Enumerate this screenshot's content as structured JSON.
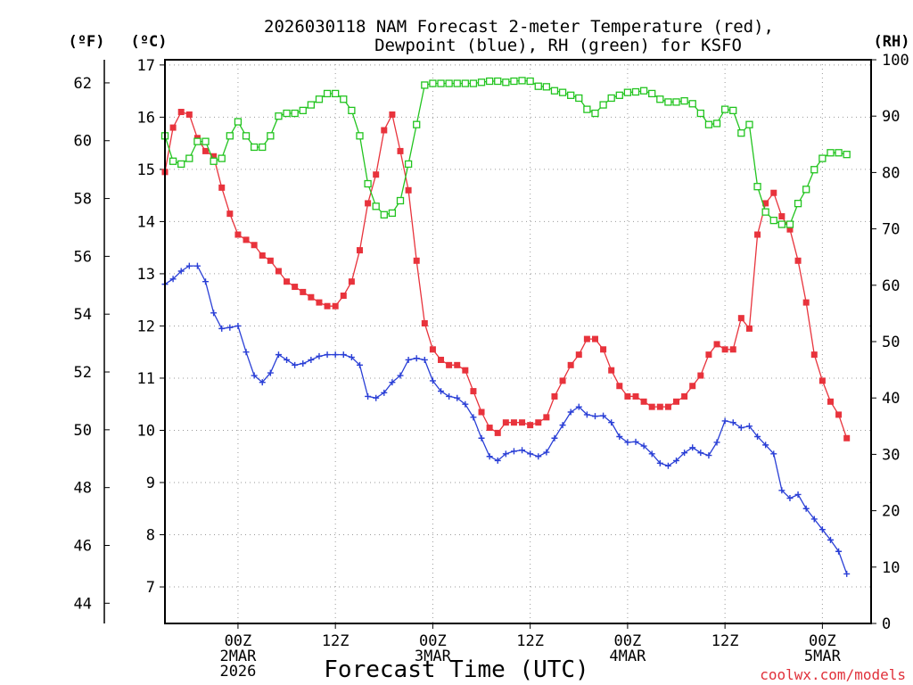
{
  "chart_data": {
    "type": "line",
    "title_line1": "2026030118 NAM Forecast 2-meter Temperature (red),",
    "title_line2": "Dewpoint (blue), RH (green) for KSFO",
    "unit_f": "(ºF)",
    "unit_c": "(ºC)",
    "unit_rh": "(RH)",
    "xlabel": "Forecast Time (UTC)",
    "credit": "coolwx.com/models",
    "x_start_hour": -3,
    "x_end_hour": 84,
    "x_ticks": [
      {
        "hour": 6,
        "lines": [
          "00Z",
          "2MAR",
          "2026"
        ]
      },
      {
        "hour": 18,
        "lines": [
          "12Z"
        ]
      },
      {
        "hour": 30,
        "lines": [
          "00Z",
          "3MAR"
        ]
      },
      {
        "hour": 42,
        "lines": [
          "12Z"
        ]
      },
      {
        "hour": 54,
        "lines": [
          "00Z",
          "4MAR"
        ]
      },
      {
        "hour": 66,
        "lines": [
          "12Z"
        ]
      },
      {
        "hour": 78,
        "lines": [
          "00Z",
          "5MAR"
        ]
      }
    ],
    "c_axis": {
      "range": [
        6.3,
        17.1
      ],
      "ticks": [
        "7",
        "8",
        "9",
        "10",
        "11",
        "12",
        "13",
        "14",
        "15",
        "16",
        "17"
      ]
    },
    "f_axis": {
      "range": [
        43.3,
        62.8
      ],
      "ticks": [
        "44",
        "46",
        "48",
        "50",
        "52",
        "54",
        "56",
        "58",
        "60",
        "62"
      ]
    },
    "rh_axis": {
      "range": [
        0,
        100
      ],
      "ticks": [
        "0",
        "10",
        "20",
        "30",
        "40",
        "50",
        "60",
        "70",
        "80",
        "90",
        "100"
      ]
    },
    "series": [
      {
        "name": "Temperature",
        "unit": "C",
        "color": "#e8333c",
        "marker": "square-filled",
        "start_hour": -3,
        "step_hours": 1,
        "values": [
          14.95,
          15.8,
          16.1,
          16.05,
          15.6,
          15.35,
          15.25,
          14.65,
          14.15,
          13.75,
          13.65,
          13.55,
          13.35,
          13.25,
          13.05,
          12.85,
          12.75,
          12.65,
          12.55,
          12.45,
          12.38,
          12.38,
          12.58,
          12.85,
          13.45,
          14.35,
          14.9,
          15.75,
          16.05,
          15.35,
          14.6,
          13.25,
          12.05,
          11.55,
          11.35,
          11.25,
          11.25,
          11.15,
          10.75,
          10.35,
          10.05,
          9.95,
          10.15,
          10.15,
          10.15,
          10.1,
          10.15,
          10.25,
          10.65,
          10.95,
          11.25,
          11.45,
          11.75,
          11.75,
          11.55,
          11.15,
          10.85,
          10.65,
          10.65,
          10.55,
          10.45,
          10.45,
          10.45,
          10.55,
          10.65,
          10.85,
          11.05,
          11.45,
          11.65,
          11.55,
          11.55,
          12.15,
          11.95,
          13.75,
          14.35,
          14.55,
          14.1,
          13.85,
          13.25,
          12.45,
          11.45,
          10.95,
          10.55,
          10.3,
          9.85
        ]
      },
      {
        "name": "Dewpoint",
        "unit": "C",
        "color": "#2a3fd6",
        "marker": "plus",
        "start_hour": -3,
        "step_hours": 1,
        "values": [
          12.8,
          12.9,
          13.05,
          13.15,
          13.15,
          12.85,
          12.25,
          11.95,
          11.97,
          12.0,
          11.5,
          11.05,
          10.92,
          11.1,
          11.45,
          11.35,
          11.25,
          11.28,
          11.35,
          11.42,
          11.45,
          11.45,
          11.45,
          11.4,
          11.25,
          10.65,
          10.62,
          10.72,
          10.92,
          11.05,
          11.35,
          11.38,
          11.35,
          10.95,
          10.75,
          10.65,
          10.62,
          10.5,
          10.25,
          9.85,
          9.5,
          9.42,
          9.55,
          9.6,
          9.62,
          9.55,
          9.5,
          9.58,
          9.85,
          10.1,
          10.35,
          10.45,
          10.3,
          10.27,
          10.28,
          10.15,
          9.88,
          9.77,
          9.78,
          9.7,
          9.55,
          9.37,
          9.32,
          9.42,
          9.57,
          9.67,
          9.57,
          9.52,
          9.77,
          10.18,
          10.15,
          10.05,
          10.08,
          9.88,
          9.72,
          9.55,
          8.85,
          8.7,
          8.77,
          8.5,
          8.3,
          8.1,
          7.9,
          7.68,
          7.25
        ]
      },
      {
        "name": "RH",
        "unit": "%",
        "color": "#22c41f",
        "marker": "square-open",
        "start_hour": -3,
        "step_hours": 1,
        "values": [
          86.5,
          82,
          81.5,
          82.5,
          85.5,
          85.5,
          82,
          82.5,
          86.5,
          89,
          86.5,
          84.5,
          84.5,
          86.5,
          90,
          90.5,
          90.5,
          91,
          92,
          93,
          94,
          94,
          93,
          91,
          86.5,
          78,
          74,
          72.5,
          72.8,
          75,
          81.5,
          88.5,
          95.5,
          95.8,
          95.8,
          95.8,
          95.8,
          95.8,
          95.8,
          96,
          96.2,
          96.2,
          96,
          96.2,
          96.3,
          96.2,
          95.3,
          95.2,
          94.5,
          94.2,
          93.7,
          93.2,
          91.2,
          90.5,
          92,
          93.2,
          93.7,
          94.2,
          94.3,
          94.5,
          94,
          93,
          92.5,
          92.5,
          92.7,
          92.2,
          90.5,
          88.5,
          88.7,
          91.2,
          91,
          87,
          88.5,
          77.5,
          73,
          71.5,
          70.8,
          70.8,
          74.5,
          77,
          80.5,
          82.5,
          83.5,
          83.5,
          83.2
        ]
      }
    ]
  }
}
